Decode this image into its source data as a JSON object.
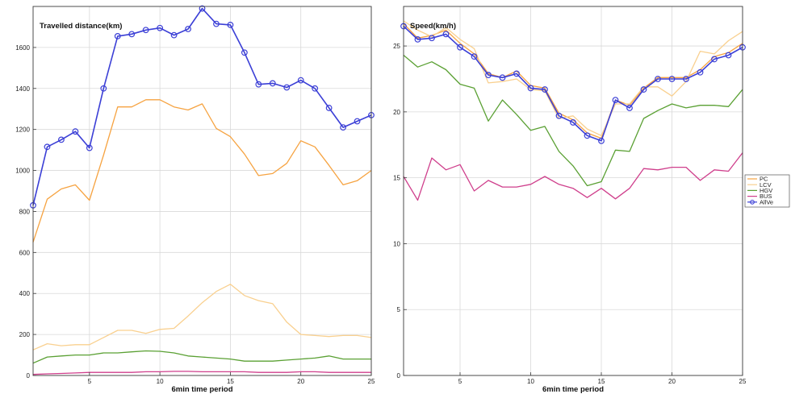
{
  "colors": {
    "PC": "#f6a341",
    "LCV": "#f9d08f",
    "HGV": "#5aa033",
    "BUS": "#cf3f8c",
    "AllVeh": "#3b3fd6",
    "grid": "#d9d9d9",
    "axis": "#3a3a3a"
  },
  "chart_data": [
    {
      "type": "line",
      "title": "Travelled distance(km)",
      "xlabel": "6min time period",
      "ylabel": "",
      "xlim": [
        1,
        25
      ],
      "ylim": [
        0,
        1800
      ],
      "xticks": [
        5,
        10,
        15,
        20,
        25
      ],
      "yticks": [
        0,
        200,
        400,
        600,
        800,
        1000,
        1200,
        1400,
        1600
      ],
      "grid": true,
      "legend": false,
      "x": [
        1,
        2,
        3,
        4,
        5,
        6,
        7,
        8,
        9,
        10,
        11,
        12,
        13,
        14,
        15,
        16,
        17,
        18,
        19,
        20,
        21,
        22,
        23,
        24,
        25
      ],
      "series": [
        {
          "key": "PC",
          "values": [
            650,
            860,
            910,
            930,
            855,
            1075,
            1310,
            1310,
            1345,
            1345,
            1310,
            1295,
            1325,
            1205,
            1165,
            1080,
            975,
            985,
            1035,
            1145,
            1115,
            1025,
            930,
            950,
            1000
          ]
        },
        {
          "key": "LCV",
          "values": [
            125,
            155,
            145,
            150,
            150,
            185,
            220,
            220,
            205,
            225,
            230,
            290,
            355,
            410,
            445,
            390,
            365,
            350,
            260,
            200,
            195,
            190,
            195,
            195,
            185
          ]
        },
        {
          "key": "HGV",
          "values": [
            60,
            90,
            95,
            100,
            100,
            110,
            110,
            115,
            120,
            118,
            110,
            95,
            90,
            85,
            80,
            70,
            70,
            70,
            75,
            80,
            85,
            95,
            80,
            80,
            80
          ]
        },
        {
          "key": "BUS",
          "values": [
            5,
            8,
            10,
            12,
            15,
            15,
            15,
            15,
            18,
            18,
            20,
            20,
            18,
            18,
            18,
            18,
            15,
            15,
            15,
            18,
            18,
            15,
            15,
            15,
            15
          ]
        },
        {
          "key": "AllVeh",
          "marker": "circle",
          "values": [
            830,
            1115,
            1150,
            1190,
            1110,
            1400,
            1655,
            1665,
            1685,
            1695,
            1660,
            1690,
            1790,
            1715,
            1710,
            1575,
            1420,
            1425,
            1405,
            1440,
            1400,
            1305,
            1210,
            1240,
            1270
          ]
        }
      ]
    },
    {
      "type": "line",
      "title": "Speed(km/h)",
      "xlabel": "6min time period",
      "ylabel": "",
      "xlim": [
        1,
        25
      ],
      "ylim": [
        0,
        28
      ],
      "xticks": [
        5,
        10,
        15,
        20,
        25
      ],
      "yticks": [
        0,
        5,
        10,
        15,
        20,
        25
      ],
      "grid": true,
      "legend": "outside right",
      "legend_labels": [
        "PC",
        "LCV",
        "HGV",
        "BUS",
        "AllVe"
      ],
      "x": [
        1,
        2,
        3,
        4,
        5,
        6,
        7,
        8,
        9,
        10,
        11,
        12,
        13,
        14,
        15,
        16,
        17,
        18,
        19,
        20,
        21,
        22,
        23,
        24,
        25
      ],
      "series": [
        {
          "key": "PC",
          "values": [
            26.7,
            25.6,
            25.8,
            26.2,
            25.2,
            24.4,
            22.9,
            22.6,
            23.1,
            22.0,
            21.8,
            19.9,
            19.4,
            18.4,
            18.0,
            20.9,
            20.5,
            21.8,
            22.6,
            22.6,
            22.6,
            23.2,
            24.2,
            24.5,
            25.2
          ]
        },
        {
          "key": "LCV",
          "values": [
            26.9,
            26.2,
            25.7,
            26.4,
            25.5,
            24.8,
            22.2,
            22.3,
            22.5,
            21.7,
            21.6,
            19.5,
            19.7,
            18.7,
            18.2,
            20.6,
            20.6,
            21.9,
            21.9,
            21.2,
            22.3,
            24.6,
            24.4,
            25.4,
            26.1
          ]
        },
        {
          "key": "HGV",
          "values": [
            24.3,
            23.4,
            23.8,
            23.2,
            22.1,
            21.8,
            19.3,
            20.9,
            19.8,
            18.6,
            18.9,
            17.0,
            15.9,
            14.4,
            14.7,
            17.1,
            17.0,
            19.5,
            20.1,
            20.6,
            20.3,
            20.5,
            20.5,
            20.4,
            21.7
          ]
        },
        {
          "key": "BUS",
          "values": [
            15.1,
            13.3,
            16.5,
            15.6,
            16.0,
            14.0,
            14.8,
            14.3,
            14.3,
            14.5,
            15.1,
            14.5,
            14.2,
            13.5,
            14.2,
            13.4,
            14.2,
            15.7,
            15.6,
            15.8,
            15.8,
            14.8,
            15.6,
            15.5,
            16.9
          ]
        },
        {
          "key": "AllVeh",
          "marker": "circle",
          "values": [
            26.5,
            25.5,
            25.6,
            25.9,
            24.9,
            24.2,
            22.8,
            22.6,
            22.9,
            21.8,
            21.7,
            19.7,
            19.2,
            18.2,
            17.8,
            20.9,
            20.3,
            21.7,
            22.5,
            22.5,
            22.5,
            23.0,
            24.0,
            24.3,
            24.9
          ]
        }
      ]
    }
  ]
}
